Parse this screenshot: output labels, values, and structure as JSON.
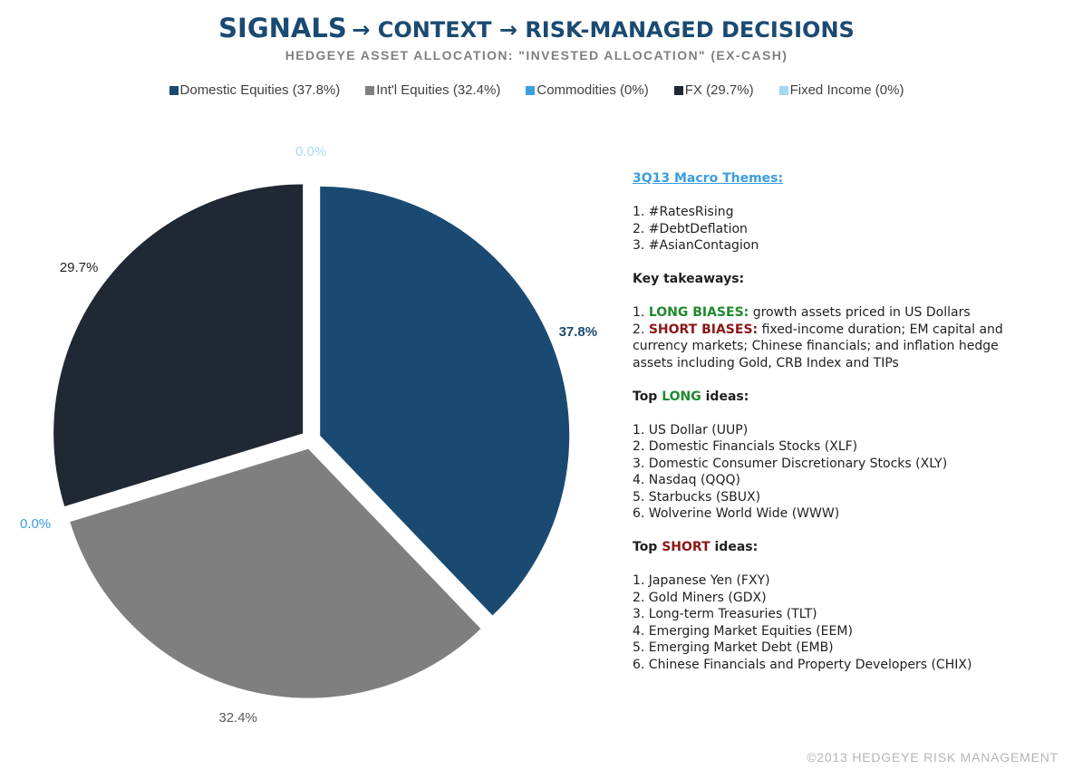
{
  "header": {
    "title_main": "SIGNALS",
    "title_rest": "→ CONTEXT → RISK-MANAGED DECISIONS",
    "subtitle": "HEDGEYE ASSET ALLOCATION: \"INVESTED ALLOCATION\" (EX-CASH)"
  },
  "chart_data": {
    "type": "pie",
    "title": "HEDGEYE ASSET ALLOCATION: \"INVESTED ALLOCATION\" (EX-CASH)",
    "legend_position": "top",
    "series": [
      {
        "name": "Domestic Equities (37.8%)",
        "value": 37.8,
        "label": "37.8%",
        "color": "#1a4a72",
        "label_color": "#1a4a72"
      },
      {
        "name": "Int'l Equities (32.4%)",
        "value": 32.4,
        "label": "32.4%",
        "color": "#7f7f7f",
        "label_color": "#595959"
      },
      {
        "name": "Commodities (0%)",
        "value": 0,
        "label": "0.0%",
        "color": "#3a9ee0",
        "label_color": "#3a9ee0"
      },
      {
        "name": "FX (29.7%)",
        "value": 29.7,
        "label": "29.7%",
        "color": "#1f2833",
        "label_color": "#1f1f1f"
      },
      {
        "name": "Fixed Income (0%)",
        "value": 0,
        "label": "0.0%",
        "color": "#a8d8f0",
        "label_color": "#a8d8f0"
      }
    ]
  },
  "panel": {
    "themes_heading": "3Q13 Macro Themes:",
    "themes": [
      "1. #RatesRising",
      "2. #DebtDeflation",
      "3. #AsianContagion"
    ],
    "takeaways_heading": "Key takeaways:",
    "long_prefix": "1. ",
    "long_label": "LONG BIASES:",
    "long_text": " growth assets priced in US Dollars",
    "short_prefix": "2. ",
    "short_label": "SHORT BIASES:",
    "short_text_1": " fixed-income duration; EM capital and",
    "short_text_2": "currency markets; Chinese financials; and inflation hedge",
    "short_text_3": "assets including Gold, CRB Index and TIPs",
    "top_word": "Top ",
    "long_word": "LONG",
    "short_word": "SHORT",
    "ideas_word": " ideas:",
    "long_ideas": [
      "1. US Dollar (UUP)",
      "2. Domestic Financials Stocks (XLF)",
      "3. Domestic Consumer Discretionary Stocks (XLY)",
      "4. Nasdaq (QQQ)",
      "5. Starbucks (SBUX)",
      "6. Wolverine World Wide (WWW)"
    ],
    "short_ideas": [
      "1. Japanese Yen (FXY)",
      "2. Gold Miners (GDX)",
      "3. Long-term Treasuries (TLT)",
      "4. Emerging Market Equities (EEM)",
      "5. Emerging Market Debt (EMB)",
      "6. Chinese Financials and Property Developers (CHIX)"
    ]
  },
  "footer": "©2013 HEDGEYE RISK MANAGEMENT"
}
